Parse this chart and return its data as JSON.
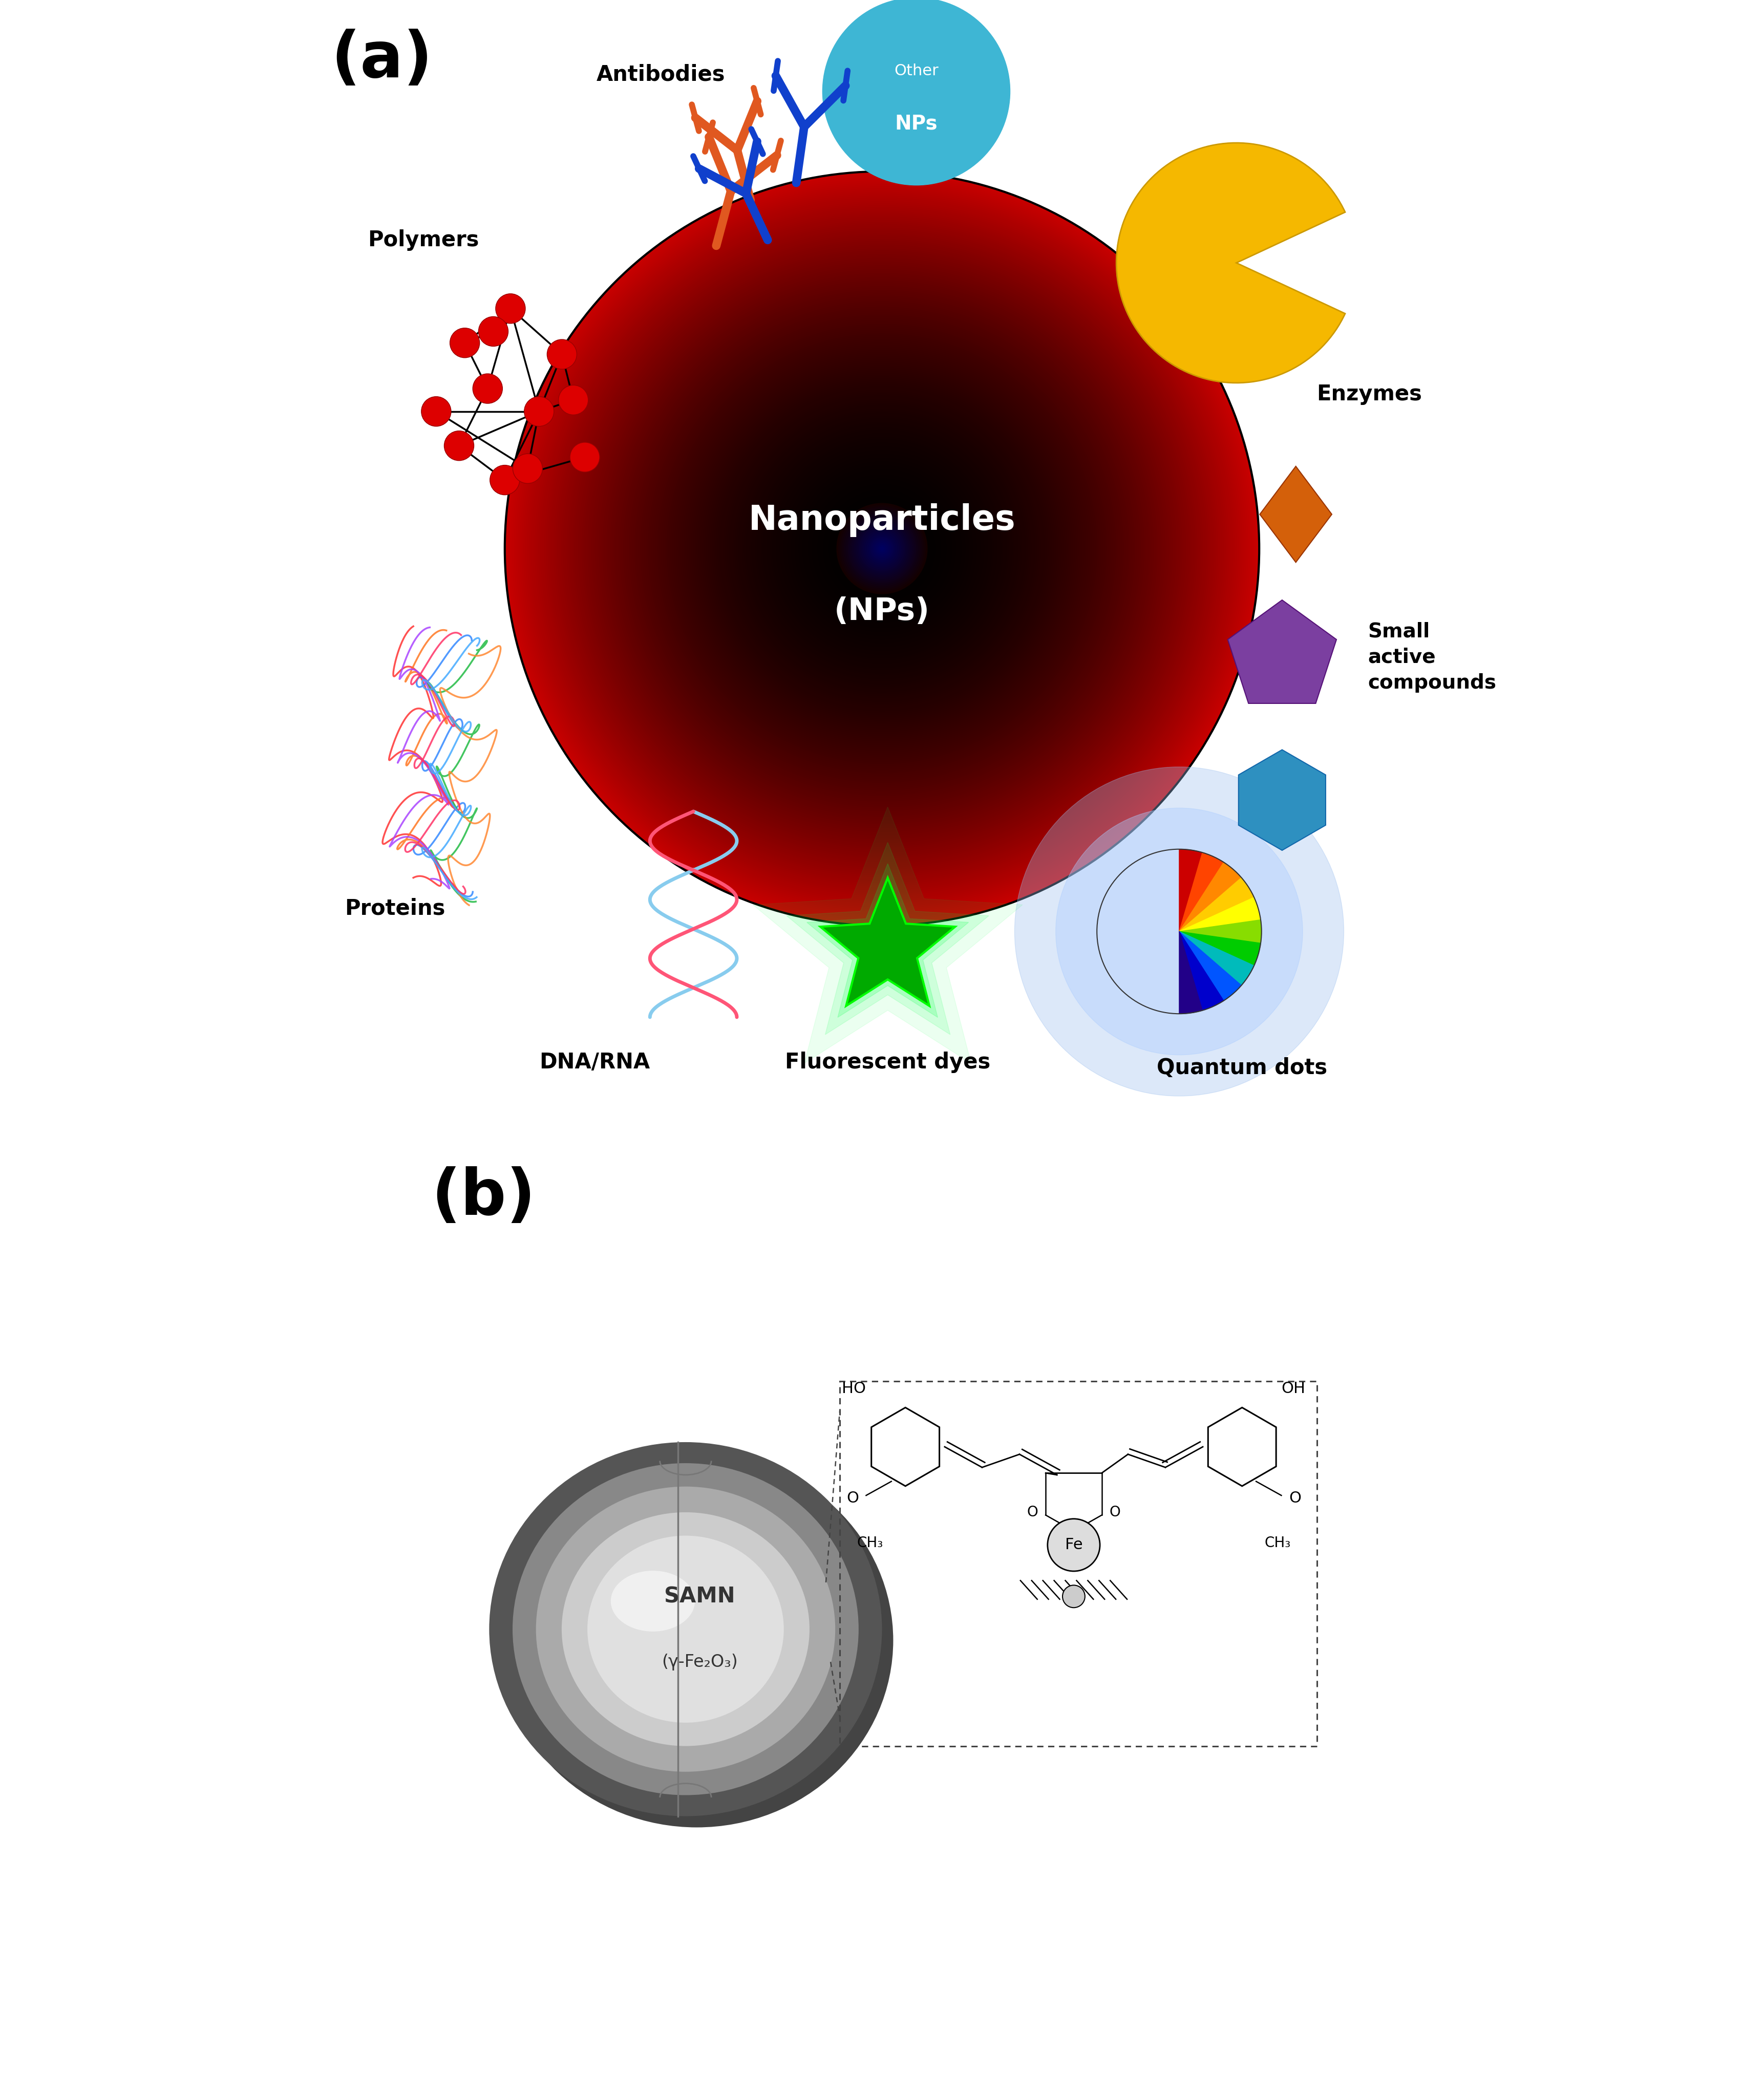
{
  "panel_a_label": "(a)",
  "panel_b_label": "(b)",
  "center_text_line1": "Nanoparticles",
  "center_text_line2": "(NPs)",
  "label_antibodies": "Antibodies",
  "label_polymers": "Polymers",
  "label_proteins": "Proteins",
  "label_dna": "DNA/RNA",
  "label_fluorescent": "Fluorescent dyes",
  "label_quantum": "Quantum dots",
  "label_small": "Small\nactive\ncompounds",
  "label_enzymes": "Enzymes",
  "label_other": "Other\nNPs",
  "samn_label_line1": "SAMN",
  "samn_label_line2": "(γ-Fe₂O₃)",
  "bg_color": "#ffffff",
  "center_text_color": "#ffffff",
  "other_np_circle_color": "#3eb6d4",
  "other_np_text_color": "#ffffff",
  "enzyme_color": "#f5b800",
  "diamond_color": "#d4600a",
  "pentagon_color": "#7b3fa0",
  "hexagon_color": "#2e90c0",
  "fluorescent_star_color": "#00aa00",
  "antibody_orange": "#e05820",
  "antibody_blue": "#1040cc",
  "polymer_atom_color": "#dd0000",
  "dna_pink": "#ff5577",
  "dna_blue": "#88ccee",
  "qd_glow_color": "#aaccff",
  "qd_colors": [
    "#0000cc",
    "#0055ff",
    "#00aaff",
    "#00dddd",
    "#00ee00",
    "#88ee00",
    "#ffee00",
    "#ffaa00",
    "#ff6600",
    "#ff2200",
    "#cc0000"
  ],
  "samn_ring1": "#555555",
  "samn_ring2": "#888888",
  "samn_ring3": "#aaaaaa",
  "samn_ring4": "#cccccc",
  "samn_core": "#e0e0e0",
  "samn_highlight": "#f5f5f5"
}
